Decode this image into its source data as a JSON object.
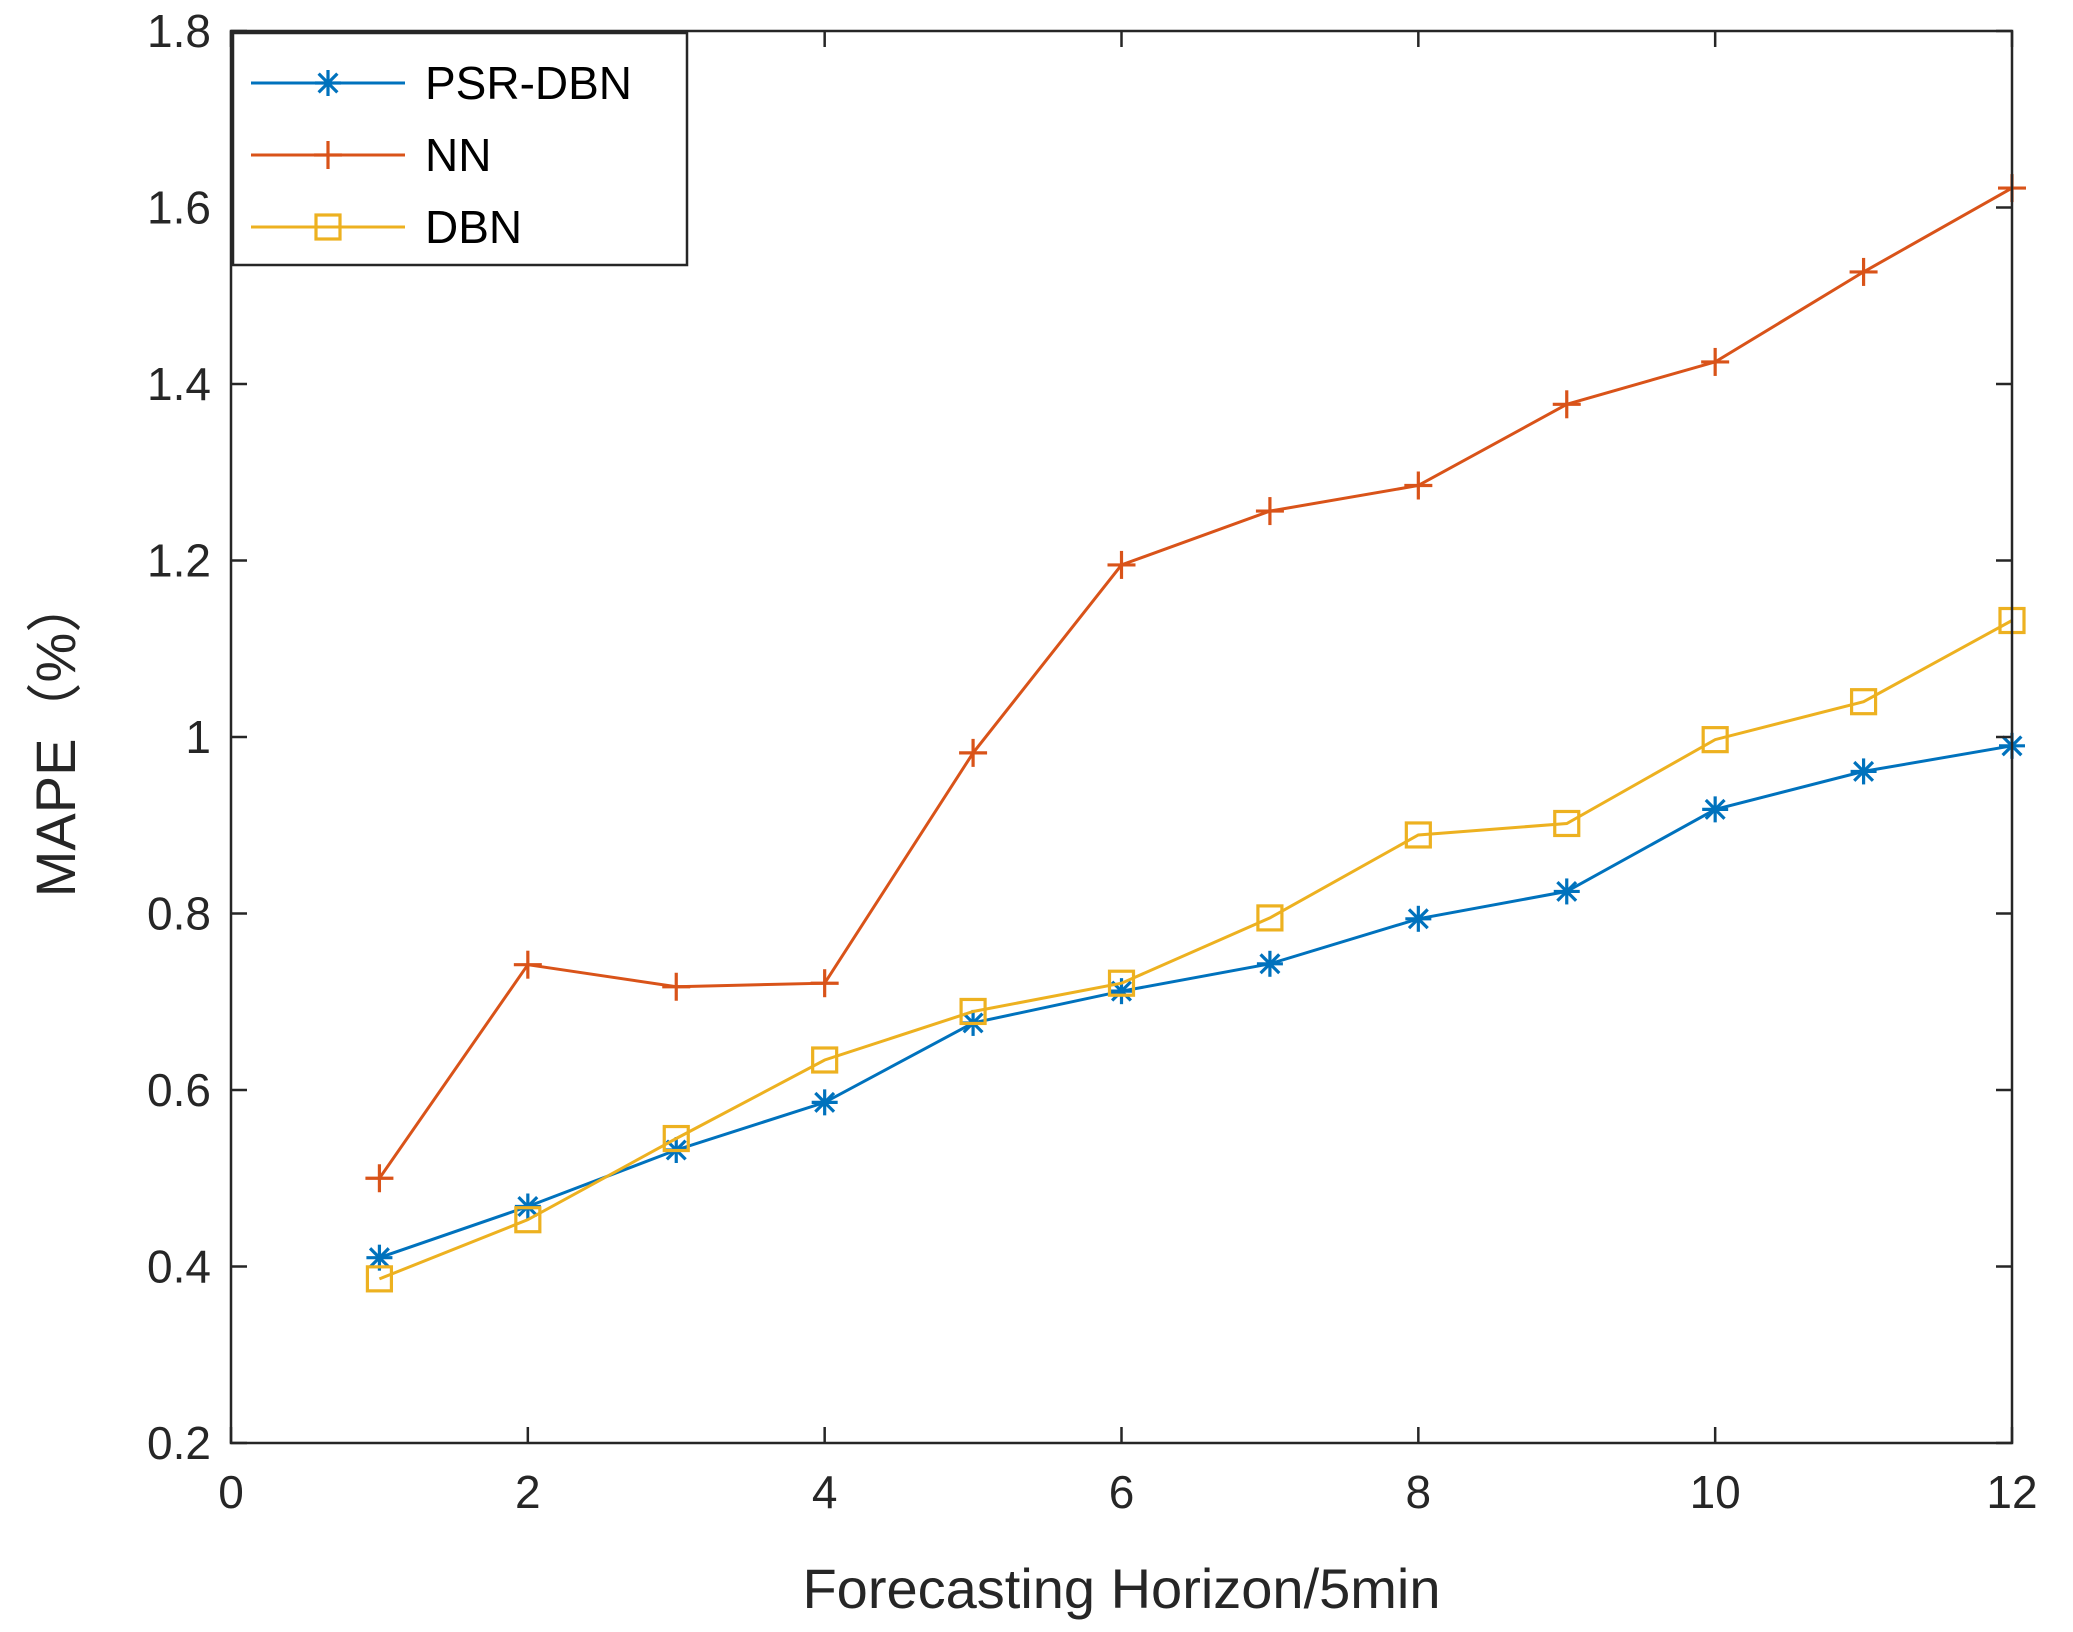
{
  "chart_data": {
    "type": "line",
    "title": "",
    "xlabel": "Forecasting Horizon/5min",
    "ylabel": "MAPE（%）",
    "xlim": [
      0,
      12
    ],
    "ylim": [
      0.2,
      1.8
    ],
    "xticks": [
      0,
      2,
      4,
      6,
      8,
      10,
      12
    ],
    "yticks": [
      0.2,
      0.4,
      0.6,
      0.8,
      1,
      1.2,
      1.4,
      1.6,
      1.8
    ],
    "xtick_labels": [
      "0",
      "2",
      "4",
      "6",
      "8",
      "10",
      "12"
    ],
    "ytick_labels": [
      "0.2",
      "0.4",
      "0.6",
      "0.8",
      "1",
      "1.2",
      "1.4",
      "1.6",
      "1.8"
    ],
    "grid": false,
    "legend_position": "top-left",
    "x": [
      1,
      2,
      3,
      4,
      5,
      6,
      7,
      8,
      9,
      10,
      11,
      12
    ],
    "series": [
      {
        "name": "PSR-DBN",
        "color": "#0072BD",
        "marker": "asterisk",
        "values": [
          0.41,
          0.468,
          0.532,
          0.586,
          0.676,
          0.712,
          0.743,
          0.794,
          0.825,
          0.918,
          0.961,
          0.99
        ]
      },
      {
        "name": "NN",
        "color": "#D95319",
        "marker": "plus",
        "values": [
          0.5,
          0.742,
          0.717,
          0.721,
          0.982,
          1.195,
          1.256,
          1.285,
          1.377,
          1.425,
          1.527,
          1.622
        ]
      },
      {
        "name": "DBN",
        "color": "#EDB120",
        "marker": "square",
        "values": [
          0.386,
          0.453,
          0.545,
          0.634,
          0.689,
          0.721,
          0.795,
          0.889,
          0.902,
          0.997,
          1.04,
          1.132
        ]
      }
    ]
  }
}
